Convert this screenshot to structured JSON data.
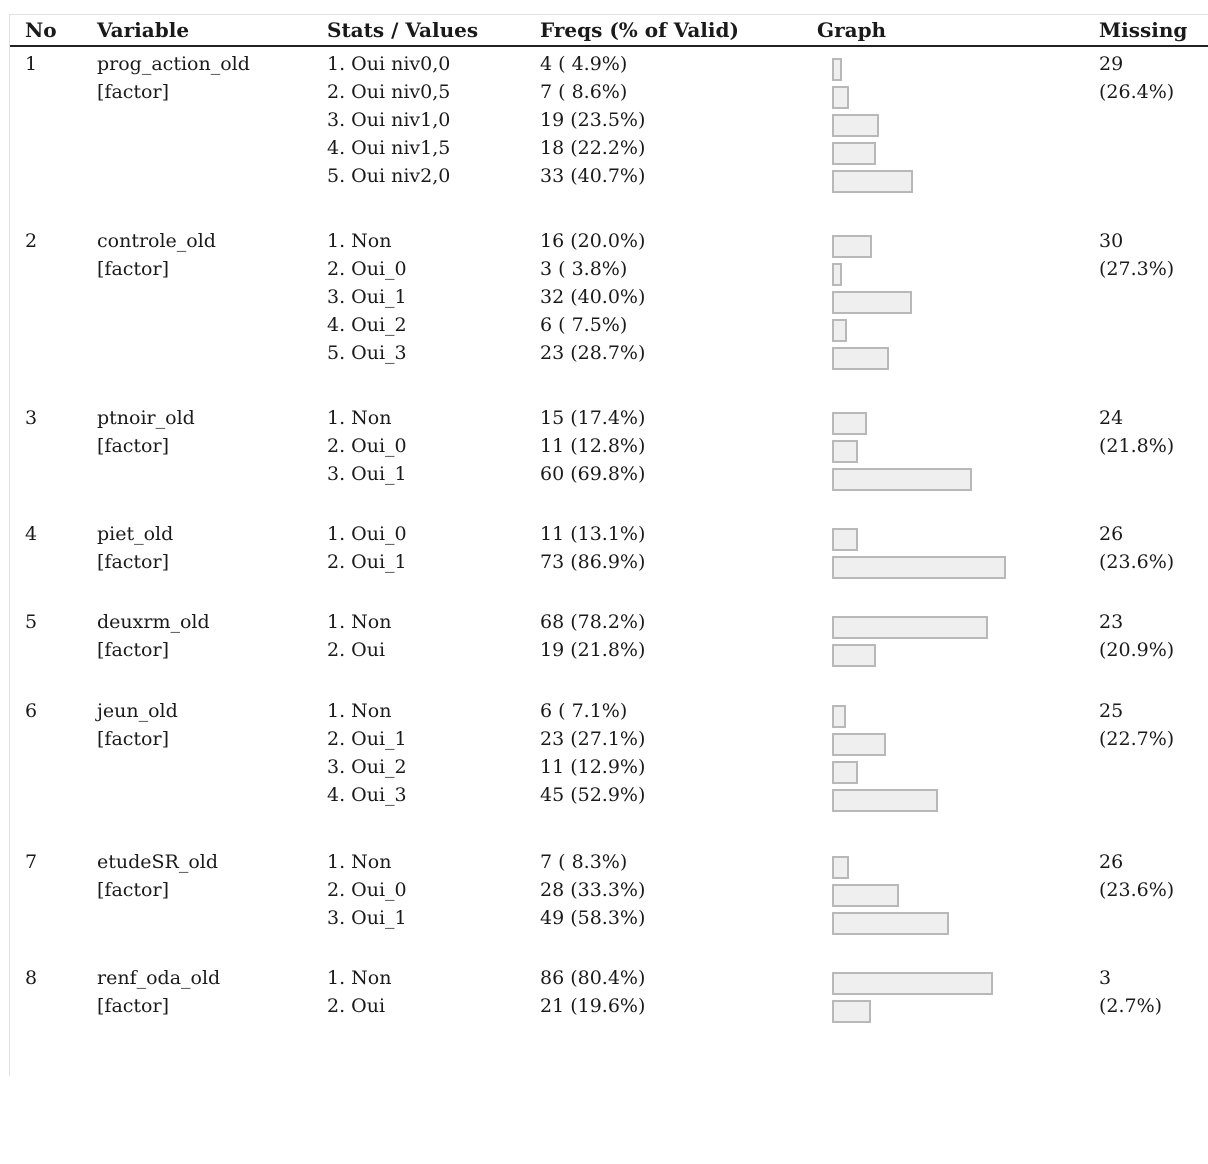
{
  "headers": {
    "no": "No",
    "variable": "Variable",
    "stats": "Stats / Values",
    "freqs": "Freqs (% of Valid)",
    "graph": "Graph",
    "missing": "Missing"
  },
  "rows": [
    {
      "no": "1",
      "name": "prog_action_old",
      "type": "[factor]",
      "values": [
        "1. Oui niv0,0",
        "2. Oui niv0,5",
        "3. Oui niv1,0",
        "4. Oui niv1,5",
        "5. Oui niv2,0"
      ],
      "freqs": [
        "4 ( 4.9%)",
        "7 ( 8.6%)",
        "19 (23.5%)",
        "18 (22.2%)",
        "33 (40.7%)"
      ],
      "pcts": [
        4.9,
        8.6,
        23.5,
        22.2,
        40.7
      ],
      "missing_n": "29",
      "missing_pct": "(26.4%)"
    },
    {
      "no": "2",
      "name": "controle_old",
      "type": "[factor]",
      "values": [
        "1. Non",
        "2. Oui_0",
        "3. Oui_1",
        "4. Oui_2",
        "5. Oui_3"
      ],
      "freqs": [
        "16 (20.0%)",
        "3 ( 3.8%)",
        "32 (40.0%)",
        "6 ( 7.5%)",
        "23 (28.7%)"
      ],
      "pcts": [
        20.0,
        3.8,
        40.0,
        7.5,
        28.7
      ],
      "missing_n": "30",
      "missing_pct": "(27.3%)"
    },
    {
      "no": "3",
      "name": "ptnoir_old",
      "type": "[factor]",
      "values": [
        "1. Non",
        "2. Oui_0",
        "3. Oui_1"
      ],
      "freqs": [
        "15 (17.4%)",
        "11 (12.8%)",
        "60 (69.8%)"
      ],
      "pcts": [
        17.4,
        12.8,
        69.8
      ],
      "missing_n": "24",
      "missing_pct": "(21.8%)"
    },
    {
      "no": "4",
      "name": "piet_old",
      "type": "[factor]",
      "values": [
        "1. Oui_0",
        "2. Oui_1"
      ],
      "freqs": [
        "11 (13.1%)",
        "73 (86.9%)"
      ],
      "pcts": [
        13.1,
        86.9
      ],
      "missing_n": "26",
      "missing_pct": "(23.6%)"
    },
    {
      "no": "5",
      "name": "deuxrm_old",
      "type": "[factor]",
      "values": [
        "1. Non",
        "2. Oui"
      ],
      "freqs": [
        "68 (78.2%)",
        "19 (21.8%)"
      ],
      "pcts": [
        78.2,
        21.8
      ],
      "missing_n": "23",
      "missing_pct": "(20.9%)"
    },
    {
      "no": "6",
      "name": "jeun_old",
      "type": "[factor]",
      "values": [
        "1. Non",
        "2. Oui_1",
        "3. Oui_2",
        "4. Oui_3"
      ],
      "freqs": [
        "6 ( 7.1%)",
        "23 (27.1%)",
        "11 (12.9%)",
        "45 (52.9%)"
      ],
      "pcts": [
        7.1,
        27.1,
        12.9,
        52.9
      ],
      "missing_n": "25",
      "missing_pct": "(22.7%)"
    },
    {
      "no": "7",
      "name": "etudeSR_old",
      "type": "[factor]",
      "values": [
        "1. Non",
        "2. Oui_0",
        "3. Oui_1"
      ],
      "freqs": [
        "7 ( 8.3%)",
        "28 (33.3%)",
        "49 (58.3%)"
      ],
      "pcts": [
        8.3,
        33.3,
        58.3
      ],
      "missing_n": "26",
      "missing_pct": "(23.6%)"
    },
    {
      "no": "8",
      "name": "renf_oda_old",
      "type": "[factor]",
      "values": [
        "1. Non",
        "2. Oui"
      ],
      "freqs": [
        "86 (80.4%)",
        "21 (19.6%)"
      ],
      "pcts": [
        80.4,
        19.6
      ],
      "missing_n": "3",
      "missing_pct": "(2.7%)"
    }
  ]
}
